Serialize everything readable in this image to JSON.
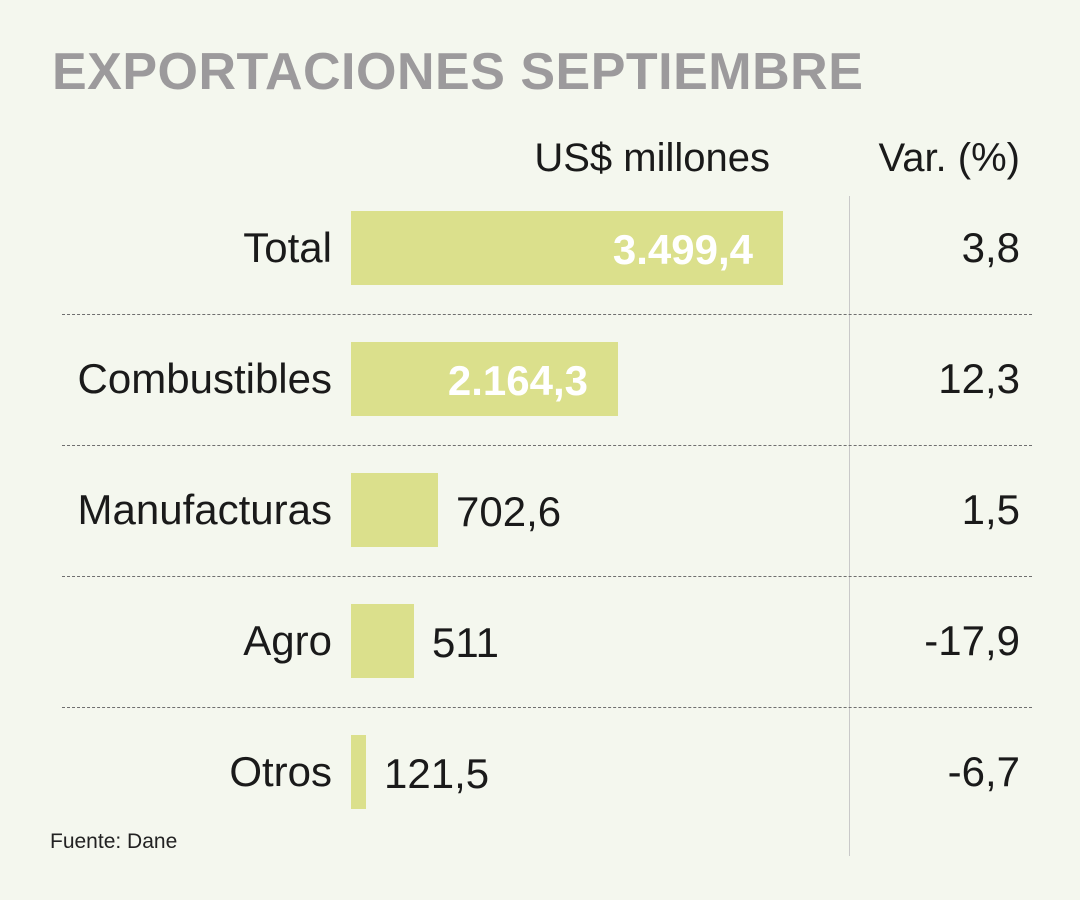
{
  "title": "EXPORTACIONES SEPTIEMBRE",
  "source": "Fuente: Dane",
  "colors": {
    "bar": "#dbe08c",
    "title": "#9c9a9c",
    "background": "#f4f7ee"
  },
  "chart_data": {
    "type": "table",
    "columns": [
      "US$ millones",
      "Var. (%)"
    ],
    "categories": [
      "Total",
      "Combustibles",
      "Manufacturas",
      "Agro",
      "Otros"
    ],
    "values": [
      3499.4,
      2164.3,
      702.6,
      511,
      121.5
    ],
    "value_labels": [
      "3.499,4",
      "2.164,3",
      "702,6",
      "511",
      "121,5"
    ],
    "variation": [
      "3,8",
      "12,3",
      "1,5",
      "-17,9",
      "-6,7"
    ]
  }
}
